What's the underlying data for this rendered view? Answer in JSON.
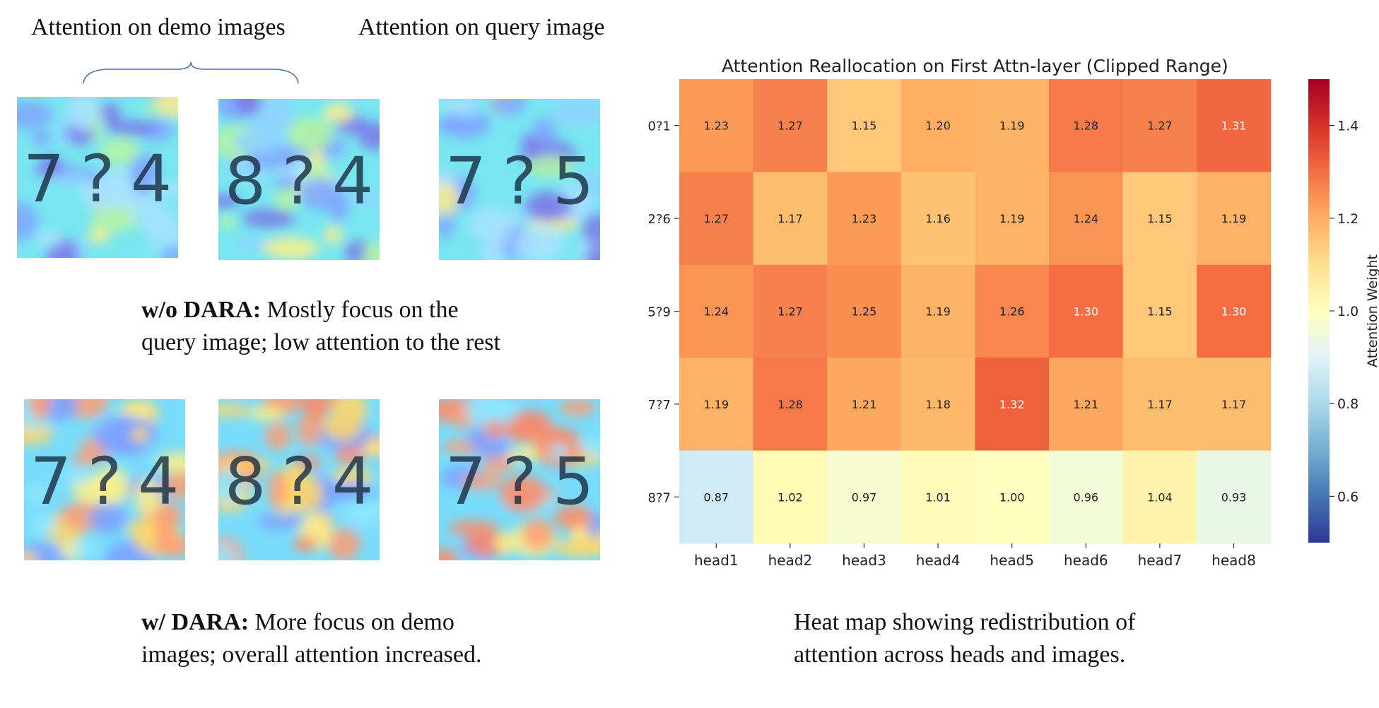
{
  "left_panel": {
    "label_demo": "Attention on demo images",
    "label_query": "Attention on query image",
    "caption_without": {
      "bold": "w/o DARA:",
      "line1": " Mostly focus on the",
      "line2": "query image; low attention to the rest"
    },
    "caption_with": {
      "bold": "w/ DARA:",
      "line1": " More focus on demo",
      "line2": "images; overall attention increased."
    },
    "rows": [
      {
        "name": "without-dara",
        "images": [
          {
            "d1": "7",
            "q": "?",
            "d2": "4"
          },
          {
            "d1": "8",
            "q": "?",
            "d2": "4"
          },
          {
            "d1": "7",
            "q": "?",
            "d2": "5"
          }
        ]
      },
      {
        "name": "with-dara",
        "images": [
          {
            "d1": "7",
            "q": "?",
            "d2": "4"
          },
          {
            "d1": "8",
            "q": "?",
            "d2": "4"
          },
          {
            "d1": "7",
            "q": "?",
            "d2": "5"
          }
        ]
      }
    ]
  },
  "right_caption": {
    "line1": "Heat map showing redistribution of",
    "line2": "attention across heads and images."
  },
  "chart_data": {
    "type": "heatmap",
    "title": "Attention Reallocation on First Attn-layer (Clipped Range)",
    "x_categories": [
      "head1",
      "head2",
      "head3",
      "head4",
      "head5",
      "head6",
      "head7",
      "head8"
    ],
    "y_categories": [
      "0?1",
      "2?6",
      "5?9",
      "7?7",
      "8?7"
    ],
    "values": [
      [
        1.23,
        1.27,
        1.15,
        1.2,
        1.19,
        1.28,
        1.27,
        1.31
      ],
      [
        1.27,
        1.17,
        1.23,
        1.16,
        1.19,
        1.24,
        1.15,
        1.19
      ],
      [
        1.24,
        1.27,
        1.25,
        1.19,
        1.26,
        1.3,
        1.15,
        1.3
      ],
      [
        1.19,
        1.28,
        1.21,
        1.18,
        1.32,
        1.21,
        1.17,
        1.17
      ],
      [
        0.87,
        1.02,
        0.97,
        1.01,
        1.0,
        0.96,
        1.04,
        0.93
      ]
    ],
    "value_labels": [
      [
        "1.23",
        "1.27",
        "1.15",
        "1.20",
        "1.19",
        "1.28",
        "1.27",
        "1.31"
      ],
      [
        "1.27",
        "1.17",
        "1.23",
        "1.16",
        "1.19",
        "1.24",
        "1.15",
        "1.19"
      ],
      [
        "1.24",
        "1.27",
        "1.25",
        "1.19",
        "1.26",
        "1.30",
        "1.15",
        "1.30"
      ],
      [
        "1.19",
        "1.28",
        "1.21",
        "1.18",
        "1.32",
        "1.21",
        "1.17",
        "1.17"
      ],
      [
        "0.87",
        "1.02",
        "0.97",
        "1.01",
        "1.00",
        "0.96",
        "1.04",
        "0.93"
      ]
    ],
    "colormap": "RdYlBu_r",
    "vmin": 0.5,
    "vmax": 1.5,
    "colorbar_label": "Attention Weight",
    "colorbar_ticks": [
      0.6,
      0.8,
      1.0,
      1.2,
      1.4
    ],
    "colorbar_tick_labels": [
      "0.6",
      "0.8",
      "1.0",
      "1.2",
      "1.4"
    ],
    "grid": false
  }
}
